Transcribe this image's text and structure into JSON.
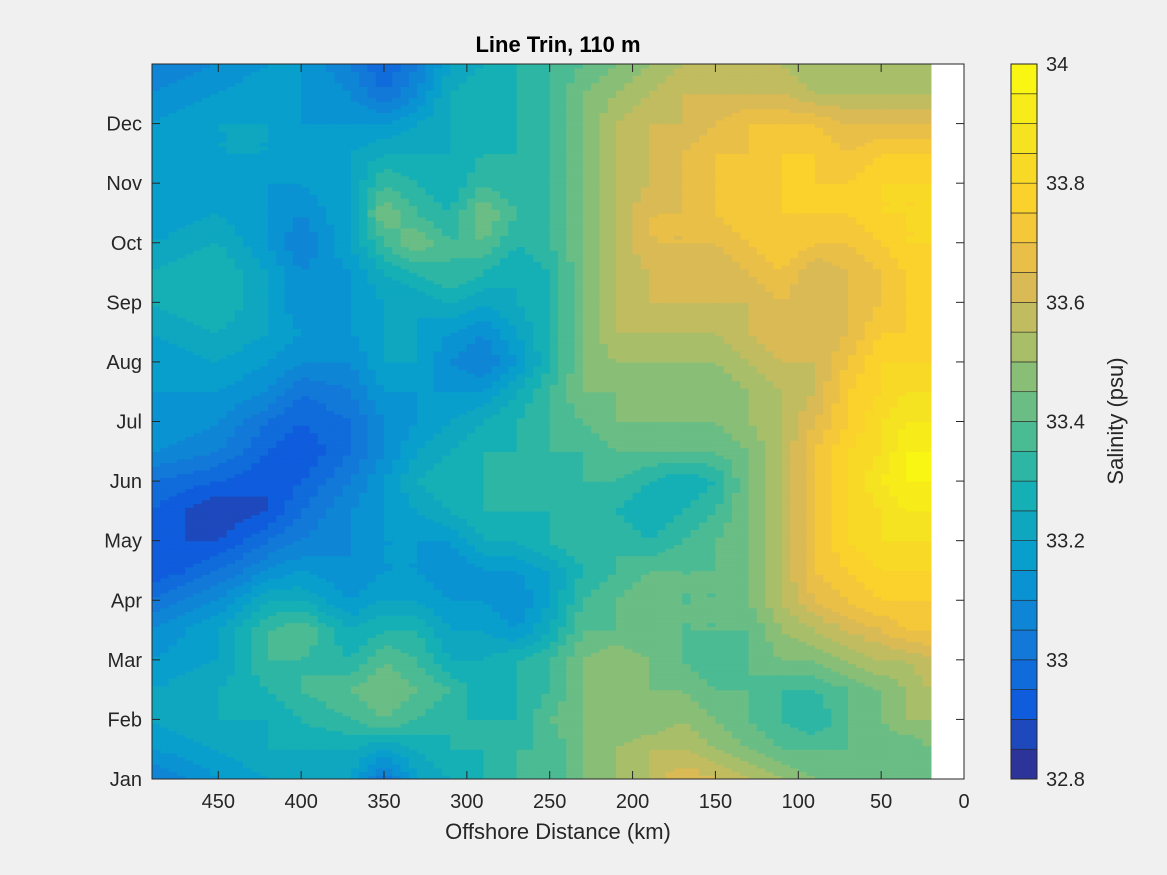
{
  "chart_data": {
    "type": "heatmap",
    "subtype": "filled-contour",
    "title": "Line Trin, 110 m",
    "xlabel": "Offshore Distance (km)",
    "ylabel": "",
    "x_axis_reversed": true,
    "xlim": [
      490,
      0
    ],
    "x_ticks": [
      450,
      400,
      350,
      300,
      250,
      200,
      150,
      100,
      50,
      0
    ],
    "y_categories": [
      "Jan",
      "Feb",
      "Mar",
      "Apr",
      "May",
      "Jun",
      "Jul",
      "Aug",
      "Sep",
      "Oct",
      "Nov",
      "Dec"
    ],
    "y_range_months": [
      1,
      13
    ],
    "data_x_range_km": [
      490,
      20
    ],
    "colorbar": {
      "label": "Salinity (psu)",
      "range": [
        32.8,
        34.0
      ],
      "step": 0.05,
      "tick_values": [
        32.8,
        33,
        33.2,
        33.4,
        33.6,
        33.8,
        34
      ],
      "tick_labels": [
        "32.8",
        "33",
        "33.2",
        "33.4",
        "33.6",
        "33.8",
        "34"
      ],
      "colormap": "parula"
    },
    "x_km": [
      490,
      450,
      420,
      400,
      370,
      350,
      330,
      310,
      290,
      270,
      250,
      230,
      210,
      190,
      170,
      150,
      130,
      110,
      90,
      70,
      50,
      35,
      20
    ],
    "y_month": [
      1,
      1.5,
      2,
      2.5,
      3,
      3.5,
      4,
      4.5,
      5,
      5.5,
      6,
      6.5,
      7,
      7.5,
      8,
      8.5,
      9,
      9.5,
      10,
      10.5,
      11,
      11.5,
      12,
      12.5,
      13
    ],
    "z_salinity": [
      [
        33.05,
        33.15,
        33.2,
        33.25,
        33.2,
        33.0,
        33.2,
        33.25,
        33.3,
        33.35,
        33.35,
        33.45,
        33.5,
        33.55,
        33.65,
        33.6,
        33.55,
        33.5,
        33.45,
        33.45,
        33.45,
        33.45,
        33.4
      ],
      [
        33.15,
        33.2,
        33.25,
        33.25,
        33.25,
        33.2,
        33.25,
        33.3,
        33.3,
        33.35,
        33.35,
        33.45,
        33.5,
        33.55,
        33.55,
        33.5,
        33.45,
        33.4,
        33.4,
        33.4,
        33.4,
        33.4,
        33.45
      ],
      [
        33.2,
        33.25,
        33.25,
        33.3,
        33.35,
        33.4,
        33.35,
        33.3,
        33.3,
        33.3,
        33.4,
        33.45,
        33.45,
        33.45,
        33.5,
        33.45,
        33.4,
        33.35,
        33.3,
        33.4,
        33.45,
        33.5,
        33.5
      ],
      [
        33.2,
        33.25,
        33.3,
        33.35,
        33.4,
        33.45,
        33.4,
        33.35,
        33.25,
        33.3,
        33.35,
        33.45,
        33.5,
        33.45,
        33.45,
        33.4,
        33.4,
        33.35,
        33.35,
        33.4,
        33.45,
        33.5,
        33.55
      ],
      [
        33.15,
        33.2,
        33.35,
        33.35,
        33.3,
        33.4,
        33.35,
        33.25,
        33.25,
        33.3,
        33.35,
        33.45,
        33.5,
        33.45,
        33.4,
        33.35,
        33.4,
        33.45,
        33.45,
        33.5,
        33.55,
        33.55,
        33.6
      ],
      [
        33.1,
        33.2,
        33.35,
        33.4,
        33.25,
        33.3,
        33.3,
        33.2,
        33.2,
        33.15,
        33.25,
        33.4,
        33.4,
        33.4,
        33.4,
        33.4,
        33.4,
        33.5,
        33.55,
        33.6,
        33.65,
        33.7,
        33.7
      ],
      [
        33.0,
        33.1,
        33.25,
        33.25,
        33.15,
        33.2,
        33.2,
        33.15,
        33.15,
        33.1,
        33.2,
        33.35,
        33.4,
        33.45,
        33.4,
        33.4,
        33.45,
        33.55,
        33.65,
        33.7,
        33.75,
        33.75,
        33.75
      ],
      [
        32.9,
        33.0,
        33.1,
        33.15,
        33.1,
        33.15,
        33.15,
        33.1,
        33.15,
        33.15,
        33.2,
        33.3,
        33.35,
        33.4,
        33.4,
        33.4,
        33.45,
        33.55,
        33.7,
        33.75,
        33.8,
        33.8,
        33.8
      ],
      [
        32.9,
        32.9,
        33.0,
        33.05,
        33.1,
        33.15,
        33.15,
        33.15,
        33.25,
        33.25,
        33.3,
        33.35,
        33.35,
        33.3,
        33.35,
        33.4,
        33.45,
        33.55,
        33.7,
        33.8,
        33.85,
        33.85,
        33.85
      ],
      [
        32.95,
        32.85,
        32.9,
        33.0,
        33.1,
        33.15,
        33.2,
        33.25,
        33.3,
        33.3,
        33.3,
        33.35,
        33.3,
        33.25,
        33.3,
        33.35,
        33.45,
        33.55,
        33.7,
        33.8,
        33.85,
        33.9,
        33.9
      ],
      [
        33.0,
        32.95,
        32.9,
        32.95,
        33.05,
        33.15,
        33.25,
        33.3,
        33.3,
        33.3,
        33.3,
        33.35,
        33.35,
        33.3,
        33.25,
        33.3,
        33.45,
        33.55,
        33.7,
        33.8,
        33.9,
        33.95,
        33.95
      ],
      [
        33.1,
        33.05,
        32.95,
        32.9,
        33.0,
        33.1,
        33.2,
        33.25,
        33.3,
        33.3,
        33.35,
        33.35,
        33.4,
        33.4,
        33.4,
        33.4,
        33.45,
        33.55,
        33.7,
        33.8,
        33.85,
        33.95,
        33.95
      ],
      [
        33.15,
        33.1,
        33.0,
        32.95,
        33.0,
        33.1,
        33.15,
        33.2,
        33.25,
        33.3,
        33.35,
        33.4,
        33.45,
        33.45,
        33.45,
        33.45,
        33.5,
        33.55,
        33.65,
        33.75,
        33.85,
        33.9,
        33.9
      ],
      [
        33.15,
        33.15,
        33.1,
        33.0,
        33.05,
        33.15,
        33.15,
        33.15,
        33.15,
        33.25,
        33.35,
        33.45,
        33.45,
        33.45,
        33.45,
        33.45,
        33.5,
        33.55,
        33.6,
        33.75,
        33.8,
        33.85,
        33.85
      ],
      [
        33.15,
        33.2,
        33.15,
        33.1,
        33.1,
        33.2,
        33.2,
        33.1,
        33.05,
        33.15,
        33.3,
        33.45,
        33.5,
        33.5,
        33.5,
        33.5,
        33.55,
        33.6,
        33.6,
        33.7,
        33.8,
        33.8,
        33.8
      ],
      [
        33.2,
        33.25,
        33.2,
        33.15,
        33.15,
        33.2,
        33.2,
        33.15,
        33.1,
        33.2,
        33.3,
        33.45,
        33.55,
        33.55,
        33.55,
        33.55,
        33.6,
        33.65,
        33.6,
        33.65,
        33.75,
        33.75,
        33.75
      ],
      [
        33.25,
        33.3,
        33.2,
        33.1,
        33.15,
        33.2,
        33.2,
        33.25,
        33.2,
        33.25,
        33.3,
        33.45,
        33.55,
        33.6,
        33.6,
        33.6,
        33.6,
        33.65,
        33.6,
        33.65,
        33.7,
        33.75,
        33.75
      ],
      [
        33.25,
        33.3,
        33.2,
        33.1,
        33.15,
        33.25,
        33.3,
        33.35,
        33.3,
        33.25,
        33.3,
        33.45,
        33.55,
        33.6,
        33.6,
        33.6,
        33.65,
        33.7,
        33.6,
        33.65,
        33.7,
        33.75,
        33.75
      ],
      [
        33.2,
        33.25,
        33.15,
        33.05,
        33.2,
        33.35,
        33.45,
        33.35,
        33.4,
        33.3,
        33.35,
        33.45,
        33.55,
        33.65,
        33.65,
        33.65,
        33.7,
        33.75,
        33.7,
        33.7,
        33.75,
        33.8,
        33.8
      ],
      [
        33.15,
        33.2,
        33.15,
        33.1,
        33.2,
        33.45,
        33.35,
        33.3,
        33.45,
        33.35,
        33.35,
        33.45,
        33.55,
        33.65,
        33.65,
        33.7,
        33.75,
        33.75,
        33.75,
        33.75,
        33.8,
        33.8,
        33.8
      ],
      [
        33.15,
        33.2,
        33.15,
        33.15,
        33.2,
        33.35,
        33.3,
        33.25,
        33.35,
        33.3,
        33.35,
        33.45,
        33.55,
        33.6,
        33.65,
        33.7,
        33.7,
        33.75,
        33.75,
        33.75,
        33.8,
        33.8,
        33.8
      ],
      [
        33.15,
        33.2,
        33.2,
        33.15,
        33.2,
        33.25,
        33.25,
        33.25,
        33.3,
        33.3,
        33.35,
        33.45,
        33.55,
        33.6,
        33.65,
        33.7,
        33.7,
        33.75,
        33.75,
        33.7,
        33.75,
        33.75,
        33.75
      ],
      [
        33.15,
        33.2,
        33.2,
        33.15,
        33.15,
        33.15,
        33.2,
        33.25,
        33.25,
        33.3,
        33.35,
        33.45,
        33.55,
        33.6,
        33.6,
        33.65,
        33.7,
        33.7,
        33.7,
        33.65,
        33.65,
        33.65,
        33.65
      ],
      [
        33.1,
        33.15,
        33.2,
        33.15,
        33.1,
        33.0,
        33.1,
        33.25,
        33.3,
        33.3,
        33.35,
        33.45,
        33.5,
        33.55,
        33.6,
        33.6,
        33.6,
        33.6,
        33.55,
        33.55,
        33.55,
        33.55,
        33.55
      ],
      [
        33.05,
        33.1,
        33.15,
        33.15,
        33.05,
        32.95,
        33.05,
        33.2,
        33.25,
        33.3,
        33.35,
        33.4,
        33.45,
        33.5,
        33.55,
        33.55,
        33.55,
        33.55,
        33.5,
        33.5,
        33.5,
        33.5,
        33.5
      ]
    ]
  }
}
